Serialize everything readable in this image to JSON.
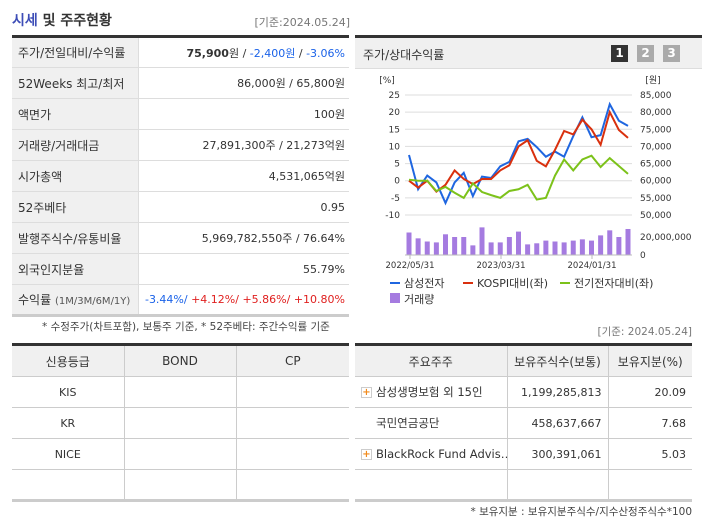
{
  "header": {
    "title_highlight": "시세",
    "title_rest": " 및 주주현황",
    "base_date": "[기준:2024.05.24]"
  },
  "info": [
    {
      "label": "주가/전일대비/수익률",
      "price": "75,900",
      "unit": "원",
      "sep": " / ",
      "change": "-2,400원",
      "sep2": " / ",
      "rate": "-3.06%"
    },
    {
      "label": "52Weeks 최고/최저",
      "value": "86,000원 / 65,800원"
    },
    {
      "label": "액면가",
      "value": "100원"
    },
    {
      "label": "거래량/거래대금",
      "value": "27,891,300주 / 21,273억원"
    },
    {
      "label": "시가총액",
      "value": "4,531,065억원"
    },
    {
      "label": "52주베타",
      "value": "0.95"
    },
    {
      "label": "발행주식수/유통비율",
      "value": "5,969,782,550주 / 76.64%"
    },
    {
      "label": "외국인지분율",
      "value": "55.79%"
    },
    {
      "label": "수익률",
      "label_sub": "(1M/3M/6M/1Y)",
      "r1": "-3.44%/",
      "r2": " +4.12%/",
      "r3": " +5.86%/",
      "r4": " +10.80%"
    }
  ],
  "note1": "* 수정주가(차트포함), 보통주 기준, * 52주베타: 주간수익률 기준",
  "chart_panel": {
    "title": "주가/상대수익률",
    "pages": [
      "1",
      "2",
      "3"
    ],
    "active_page": "1"
  },
  "chart_data": {
    "type": "line",
    "left_unit": "[%]",
    "right_unit": "[원]",
    "left_ticks": [
      "25",
      "20",
      "15",
      "10",
      "5",
      "0",
      "-5",
      "-10"
    ],
    "right_ticks": [
      "85,000",
      "80,000",
      "75,000",
      "70,000",
      "65,000",
      "60,000",
      "55,000",
      "50,000"
    ],
    "volume_ticks": [
      "20,000,000",
      "0"
    ],
    "ylim": [
      -10,
      25
    ],
    "x_labels": [
      "2022/05/31",
      "2023/03/31",
      "2024/01/31"
    ],
    "series": [
      {
        "name": "삼성전자",
        "color": "#1f66e0",
        "values": [
          7.5,
          -2.5,
          1.5,
          -0.5,
          -6.5,
          -0.5,
          2.3,
          -4.5,
          1.2,
          0.8,
          4.2,
          5.5,
          11.5,
          12.2,
          9.8,
          7,
          8.5,
          7,
          13,
          18.5,
          12.7,
          13.3,
          22.3,
          17.5,
          16
        ]
      },
      {
        "name": "KOSPI대비(좌)",
        "color": "#d9300e",
        "values": [
          0,
          -2,
          0,
          -3.2,
          -1.2,
          3,
          0.5,
          -1,
          0.5,
          0.5,
          3,
          4.5,
          10,
          11.8,
          5.8,
          4.2,
          9,
          14.5,
          13.5,
          17.8,
          15,
          10.5,
          20,
          14.8,
          12.5
        ]
      },
      {
        "name": "전기전자대비(좌)",
        "color": "#7cc21a",
        "values": [
          0.3,
          0,
          0,
          -3,
          -1.8,
          -3.5,
          -5,
          -0.8,
          -3.3,
          -4.2,
          -5,
          -3,
          -2.5,
          -1.2,
          -5.5,
          -5,
          1.5,
          6.2,
          3,
          6.2,
          7.3,
          4,
          6.6,
          4.3,
          2
        ]
      },
      {
        "name": "거래량",
        "color": "#a57be0",
        "type": "bar",
        "values_millions": [
          25,
          18.5,
          15,
          14,
          23,
          20,
          20,
          10.7,
          30.7,
          14,
          14,
          20,
          26,
          11.8,
          13,
          16,
          15,
          14,
          16,
          17.4,
          16,
          21.8,
          27.4,
          20,
          28.9
        ]
      }
    ],
    "grid": true
  },
  "base_date2": "[기준: 2024.05.24]",
  "credit": {
    "headers": [
      "신용등급",
      "BOND",
      "CP"
    ],
    "rows": [
      [
        "KIS",
        "",
        ""
      ],
      [
        "KR",
        "",
        ""
      ],
      [
        "NICE",
        "",
        ""
      ],
      [
        "",
        "",
        ""
      ]
    ]
  },
  "holders": {
    "headers": [
      "주요주주",
      "보유주식수(보통)",
      "보유지분(%)"
    ],
    "rows": [
      {
        "name": "삼성생명보험 외 15인",
        "shares": "1,199,285,813",
        "pct": "20.09",
        "expand": true
      },
      {
        "name": "국민연금공단",
        "shares": "458,637,667",
        "pct": "7.68",
        "expand": false
      },
      {
        "name": "BlackRock Fund Advis…",
        "shares": "300,391,061",
        "pct": "5.03",
        "expand": true
      }
    ]
  },
  "note2": "* 보유지분 : 보유지분주식수/지수산정주식수*100"
}
